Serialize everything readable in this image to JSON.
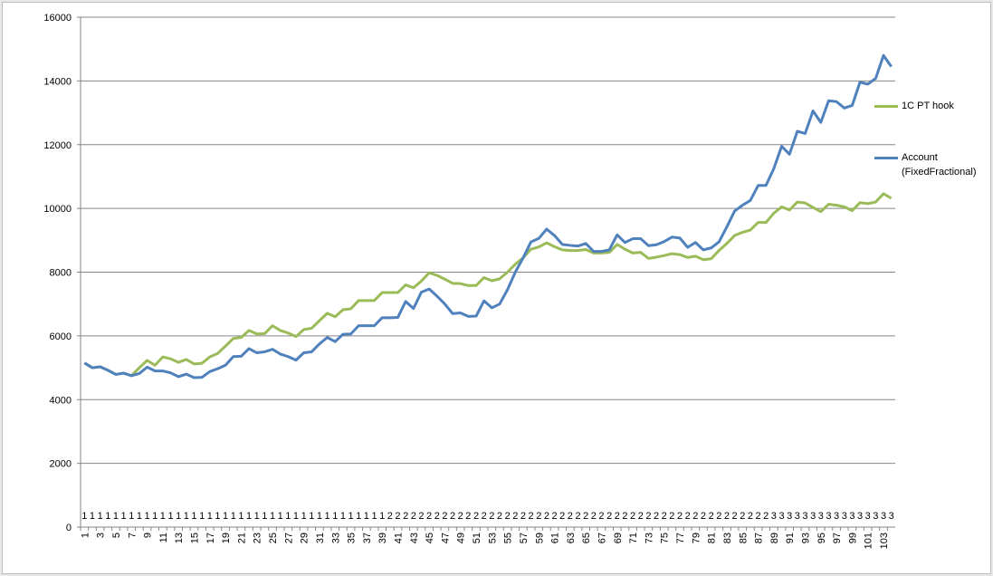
{
  "chart_data": {
    "type": "line",
    "categories": [
      "1",
      null,
      "3",
      null,
      "5",
      null,
      "7",
      null,
      "9",
      null,
      "11",
      null,
      "13",
      null,
      "15",
      null,
      "17",
      null,
      "19",
      null,
      "21",
      null,
      "23",
      null,
      "25",
      null,
      "27",
      null,
      "29",
      null,
      "31",
      null,
      "33",
      null,
      "35",
      null,
      "37",
      null,
      "39",
      null,
      "41",
      null,
      "43",
      null,
      "45",
      null,
      "47",
      null,
      "49",
      null,
      "51",
      null,
      "53",
      null,
      "55",
      null,
      "57",
      null,
      "59",
      null,
      "61",
      null,
      "63",
      null,
      "65",
      null,
      "67",
      null,
      "69",
      null,
      "71",
      null,
      "73",
      null,
      "75",
      null,
      "77",
      null,
      "79",
      null,
      "81",
      null,
      "83",
      null,
      "85",
      null,
      "87",
      null,
      "89",
      null,
      "91",
      null,
      "93",
      null,
      "95",
      null,
      "97",
      null,
      "99",
      null,
      "101",
      null,
      "103",
      null
    ],
    "series": [
      {
        "name": "1C PT hook",
        "color": "#9bbb59",
        "values": [
          5150,
          5000,
          5030,
          4920,
          4790,
          4830,
          4750,
          5000,
          5230,
          5080,
          5340,
          5280,
          5170,
          5260,
          5120,
          5140,
          5340,
          5450,
          5680,
          5920,
          5950,
          6170,
          6060,
          6070,
          6320,
          6170,
          6090,
          5980,
          6200,
          6240,
          6480,
          6710,
          6600,
          6820,
          6850,
          7110,
          7110,
          7110,
          7360,
          7360,
          7360,
          7600,
          7510,
          7720,
          7980,
          7900,
          7780,
          7650,
          7640,
          7580,
          7580,
          7830,
          7730,
          7790,
          8000,
          8250,
          8450,
          8720,
          8790,
          8920,
          8800,
          8700,
          8680,
          8680,
          8710,
          8600,
          8600,
          8620,
          8870,
          8720,
          8600,
          8620,
          8430,
          8470,
          8520,
          8580,
          8550,
          8460,
          8500,
          8390,
          8420,
          8680,
          8900,
          9150,
          9250,
          9320,
          9560,
          9560,
          9850,
          10050,
          9950,
          10200,
          10170,
          10030,
          9900,
          10130,
          10100,
          10050,
          9930,
          10180,
          10150,
          10200,
          10460,
          10320
        ]
      },
      {
        "name": "Account (FixedFractional)",
        "color": "#4f81bd",
        "values": [
          5150,
          5000,
          5030,
          4920,
          4790,
          4830,
          4750,
          4820,
          5020,
          4900,
          4900,
          4840,
          4720,
          4800,
          4690,
          4700,
          4880,
          4970,
          5080,
          5350,
          5360,
          5600,
          5470,
          5500,
          5580,
          5430,
          5350,
          5240,
          5470,
          5500,
          5750,
          5950,
          5820,
          6050,
          6060,
          6320,
          6320,
          6320,
          6570,
          6570,
          6580,
          7080,
          6860,
          7370,
          7470,
          7250,
          7000,
          6700,
          6720,
          6610,
          6620,
          7100,
          6880,
          7000,
          7450,
          8000,
          8450,
          8950,
          9060,
          9350,
          9150,
          8870,
          8840,
          8820,
          8900,
          8650,
          8650,
          8700,
          9170,
          8930,
          9050,
          9050,
          8830,
          8860,
          8960,
          9100,
          9070,
          8780,
          8930,
          8700,
          8760,
          8950,
          9420,
          9920,
          10100,
          10250,
          10720,
          10720,
          11250,
          11950,
          11700,
          12420,
          12350,
          13060,
          12700,
          13380,
          13350,
          13150,
          13230,
          13960,
          13900,
          14080,
          14800,
          14450
        ]
      },
      {
        "data_labels": true,
        "values": [
          1,
          1,
          1,
          1,
          1,
          1,
          1,
          1,
          1,
          1,
          1,
          1,
          1,
          1,
          1,
          1,
          1,
          1,
          1,
          1,
          1,
          1,
          1,
          1,
          1,
          1,
          1,
          1,
          1,
          1,
          1,
          1,
          1,
          1,
          1,
          1,
          1,
          1,
          1,
          2,
          2,
          2,
          2,
          2,
          2,
          2,
          2,
          2,
          2,
          2,
          2,
          2,
          2,
          2,
          2,
          2,
          2,
          2,
          2,
          2,
          2,
          2,
          2,
          2,
          2,
          2,
          2,
          2,
          2,
          2,
          2,
          2,
          2,
          2,
          2,
          2,
          2,
          2,
          2,
          2,
          2,
          2,
          2,
          2,
          2,
          2,
          2,
          2,
          3,
          3,
          3,
          3,
          3,
          3,
          3,
          3,
          3,
          3,
          3,
          3,
          3,
          3,
          3,
          3
        ]
      }
    ],
    "ylim": [
      0,
      16000
    ],
    "yticks": [
      0,
      2000,
      4000,
      6000,
      8000,
      10000,
      12000,
      14000,
      16000
    ],
    "grid": true,
    "legend": "right"
  }
}
